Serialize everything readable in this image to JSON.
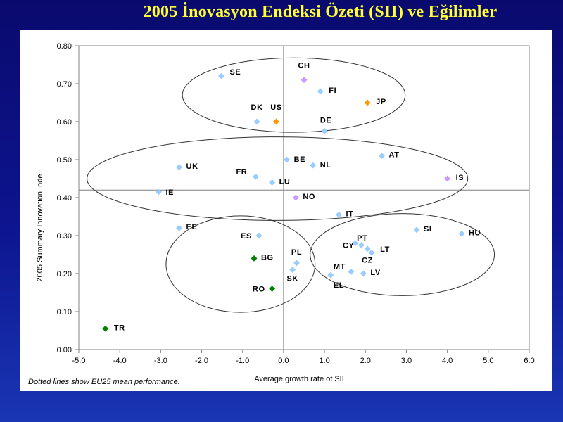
{
  "slide": {
    "title": "2005 İnovasyon Endeksi Özeti (SII) ve Eğilimler"
  },
  "chart_data": {
    "type": "scatter",
    "xlabel": "Average growth rate of SII",
    "ylabel": "2005 Summary Innovation Inde",
    "xlim": [
      -5.0,
      6.0
    ],
    "ylim": [
      0.0,
      0.8
    ],
    "xticks": [
      "-5.0",
      "-4.0",
      "-3.0",
      "-2.0",
      "-1.0",
      "0.0",
      "1.0",
      "2.0",
      "3.0",
      "4.0",
      "5.0",
      "6.0"
    ],
    "yticks": [
      "0.00",
      "0.10",
      "0.20",
      "0.30",
      "0.40",
      "0.50",
      "0.60",
      "0.70",
      "0.80"
    ],
    "mean_lines": {
      "x": 0.0,
      "y": 0.42
    },
    "footnote": "Dotted lines show EU25 mean performance.",
    "colors": {
      "eu": "#99ccff",
      "other": "#cc99ff",
      "leaders": "#ff9900",
      "candidates": "#008000"
    },
    "points": [
      {
        "label": "SE",
        "x": -1.52,
        "y": 0.72,
        "group": "eu"
      },
      {
        "label": "CH",
        "x": 0.5,
        "y": 0.71,
        "group": "other"
      },
      {
        "label": "FI",
        "x": 0.9,
        "y": 0.68,
        "group": "eu"
      },
      {
        "label": "JP",
        "x": 2.05,
        "y": 0.65,
        "group": "leaders"
      },
      {
        "label": "DK",
        "x": -0.65,
        "y": 0.6,
        "group": "eu"
      },
      {
        "label": "US",
        "x": -0.18,
        "y": 0.6,
        "group": "leaders"
      },
      {
        "label": "DE",
        "x": 1.0,
        "y": 0.575,
        "group": "eu"
      },
      {
        "label": "AT",
        "x": 2.4,
        "y": 0.51,
        "group": "eu"
      },
      {
        "label": "BE",
        "x": 0.08,
        "y": 0.5,
        "group": "eu"
      },
      {
        "label": "NL",
        "x": 0.72,
        "y": 0.485,
        "group": "eu"
      },
      {
        "label": "UK",
        "x": -2.55,
        "y": 0.48,
        "group": "eu"
      },
      {
        "label": "FR",
        "x": -0.68,
        "y": 0.455,
        "group": "eu"
      },
      {
        "label": "IS",
        "x": 4.0,
        "y": 0.45,
        "group": "other"
      },
      {
        "label": "LU",
        "x": -0.28,
        "y": 0.44,
        "group": "eu"
      },
      {
        "label": "IE",
        "x": -3.05,
        "y": 0.415,
        "group": "eu"
      },
      {
        "label": "NO",
        "x": 0.3,
        "y": 0.4,
        "group": "other"
      },
      {
        "label": "IT",
        "x": 1.35,
        "y": 0.355,
        "group": "eu"
      },
      {
        "label": "EE",
        "x": -2.55,
        "y": 0.32,
        "group": "eu"
      },
      {
        "label": "SI",
        "x": 3.25,
        "y": 0.315,
        "group": "eu"
      },
      {
        "label": "HU",
        "x": 4.35,
        "y": 0.305,
        "group": "eu"
      },
      {
        "label": "ES",
        "x": -0.6,
        "y": 0.3,
        "group": "eu"
      },
      {
        "label": "PT",
        "x": 1.75,
        "y": 0.28,
        "group": "eu"
      },
      {
        "label": "CY",
        "x": 1.9,
        "y": 0.275,
        "group": "eu"
      },
      {
        "label": "LT",
        "x": 2.05,
        "y": 0.265,
        "group": "eu"
      },
      {
        "label": "CZ",
        "x": 2.15,
        "y": 0.255,
        "group": "eu"
      },
      {
        "label": "BG",
        "x": -0.72,
        "y": 0.24,
        "group": "candidates"
      },
      {
        "label": "PL",
        "x": 0.32,
        "y": 0.228,
        "group": "eu"
      },
      {
        "label": "MT",
        "x": 1.65,
        "y": 0.205,
        "group": "eu"
      },
      {
        "label": "LV",
        "x": 1.95,
        "y": 0.2,
        "group": "eu"
      },
      {
        "label": "EL",
        "x": 1.15,
        "y": 0.196,
        "group": "eu"
      },
      {
        "label": "SK",
        "x": 0.22,
        "y": 0.21,
        "group": "eu"
      },
      {
        "label": "RO",
        "x": -0.28,
        "y": 0.16,
        "group": "candidates"
      },
      {
        "label": "TR",
        "x": -4.35,
        "y": 0.055,
        "group": "candidates"
      }
    ]
  }
}
